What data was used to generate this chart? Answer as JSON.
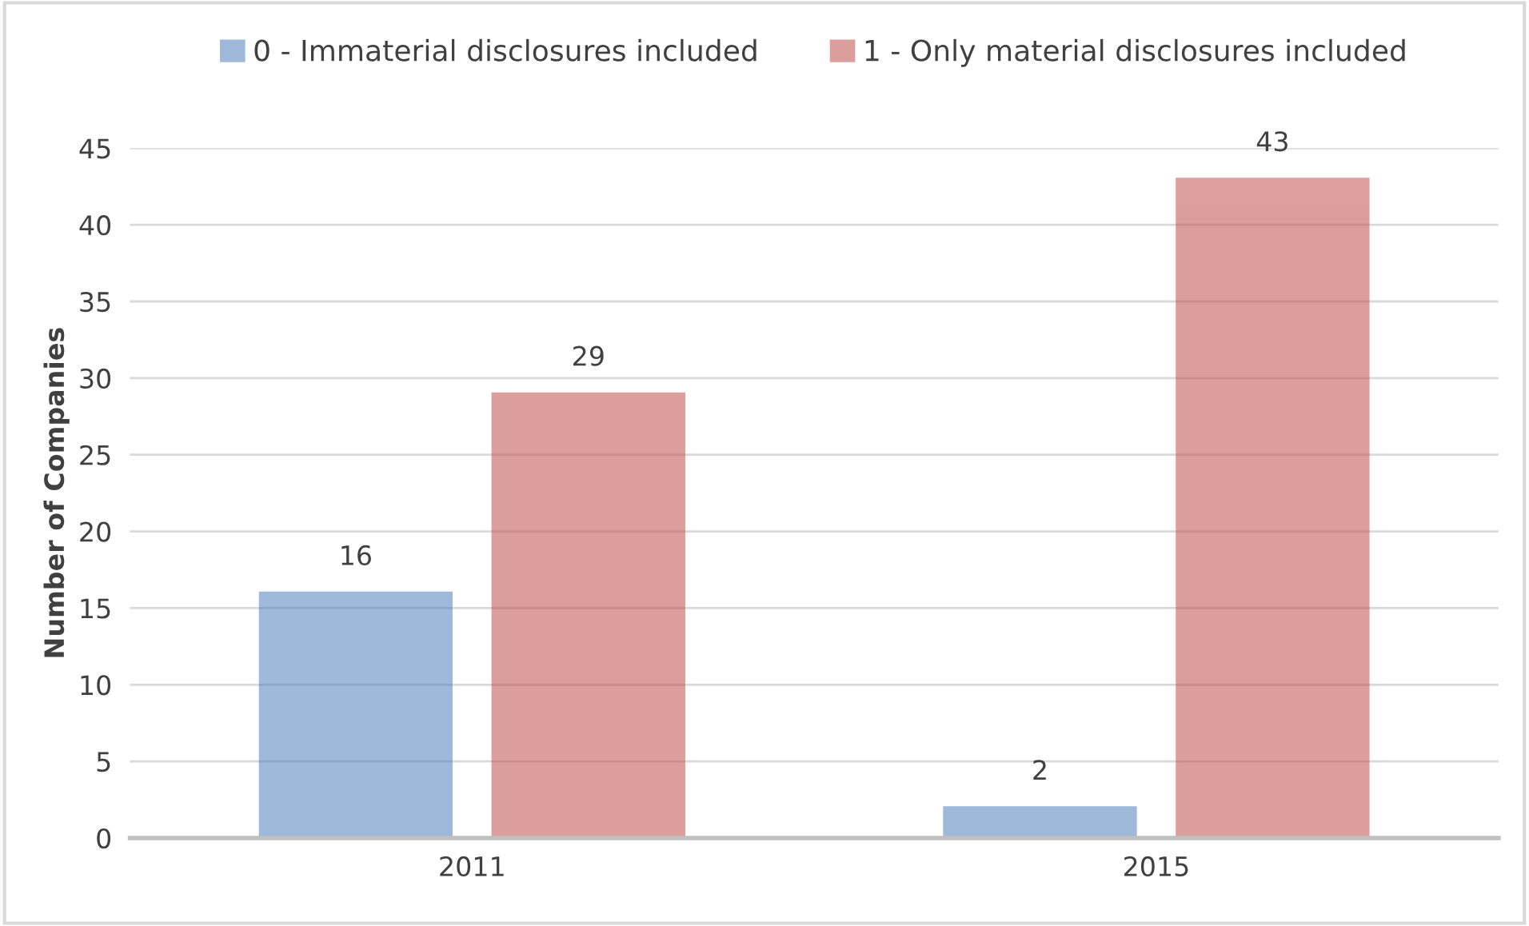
{
  "chart_data": {
    "type": "bar",
    "ylabel": "Number of Companies",
    "categories": [
      "2011",
      "2015"
    ],
    "series": [
      {
        "name": "0 - Immaterial disclosures included",
        "color": "#4f81bd",
        "values": [
          16,
          2
        ]
      },
      {
        "name": "1 - Only material disclosures included",
        "color": "#c0504d",
        "values": [
          29,
          43
        ]
      }
    ],
    "ylim": [
      0,
      45
    ],
    "yticks": [
      0,
      5,
      10,
      15,
      20,
      25,
      30,
      35,
      40,
      45
    ],
    "grid": "y",
    "legend": "top",
    "data_labels": true
  }
}
